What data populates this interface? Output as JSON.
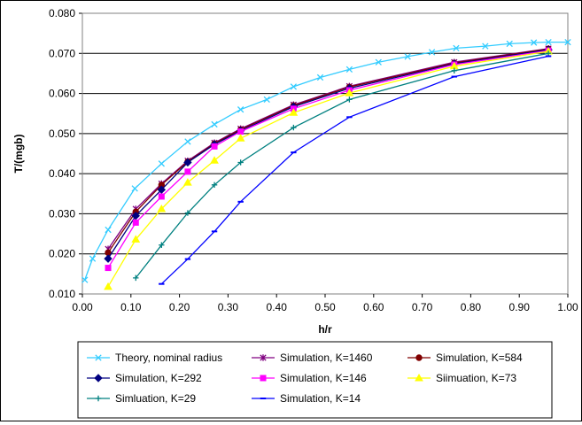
{
  "chart_data": {
    "type": "line",
    "title": "",
    "xlabel": "h/r",
    "ylabel": "T/(mgb)",
    "xlim": [
      0.0,
      1.0
    ],
    "ylim": [
      0.01,
      0.08
    ],
    "x_ticks": [
      "0.00",
      "0.10",
      "0.20",
      "0.30",
      "0.40",
      "0.50",
      "0.60",
      "0.70",
      "0.80",
      "0.90",
      "1.00"
    ],
    "y_ticks": [
      "0.010",
      "0.020",
      "0.030",
      "0.040",
      "0.050",
      "0.060",
      "0.070",
      "0.080"
    ],
    "grid": {
      "x": false,
      "y": true
    },
    "legend_position": "bottom",
    "series": [
      {
        "name": "Theory, nominal radius",
        "color": "#33CCFF",
        "marker": "x",
        "x": [
          0.005,
          0.021,
          0.053,
          0.108,
          0.163,
          0.217,
          0.272,
          0.326,
          0.38,
          0.435,
          0.49,
          0.55,
          0.61,
          0.67,
          0.72,
          0.77,
          0.83,
          0.88,
          0.93,
          0.96,
          1.0
        ],
        "y": [
          0.0135,
          0.0188,
          0.026,
          0.0363,
          0.0425,
          0.048,
          0.0523,
          0.056,
          0.0585,
          0.0617,
          0.064,
          0.066,
          0.0678,
          0.0692,
          0.0703,
          0.0713,
          0.0718,
          0.0724,
          0.0727,
          0.0728,
          0.0728
        ]
      },
      {
        "name": "Simulation, K=1460",
        "color": "#800080",
        "marker": "asterisk",
        "x": [
          0.053,
          0.11,
          0.163,
          0.217,
          0.272,
          0.326,
          0.435,
          0.55,
          0.766,
          0.96
        ],
        "y": [
          0.0212,
          0.0312,
          0.0375,
          0.0432,
          0.0477,
          0.0512,
          0.0572,
          0.0618,
          0.0678,
          0.0712
        ]
      },
      {
        "name": "Simulation, K=584",
        "color": "#800000",
        "marker": "circle",
        "x": [
          0.053,
          0.11,
          0.163,
          0.217,
          0.272,
          0.326,
          0.435,
          0.55,
          0.766,
          0.96
        ],
        "y": [
          0.0203,
          0.0305,
          0.0372,
          0.043,
          0.0475,
          0.051,
          0.057,
          0.0616,
          0.0676,
          0.0711
        ]
      },
      {
        "name": "Simulation, K=292",
        "color": "#000080",
        "marker": "diamond",
        "x": [
          0.053,
          0.11,
          0.163,
          0.217,
          0.272,
          0.326,
          0.435,
          0.55,
          0.766,
          0.96
        ],
        "y": [
          0.0188,
          0.0295,
          0.036,
          0.0428,
          0.0473,
          0.0507,
          0.0567,
          0.0613,
          0.0674,
          0.0709
        ]
      },
      {
        "name": "Simulation, K=146",
        "color": "#FF00FF",
        "marker": "square",
        "x": [
          0.053,
          0.11,
          0.163,
          0.217,
          0.272,
          0.326,
          0.435,
          0.55,
          0.766,
          0.96
        ],
        "y": [
          0.0165,
          0.0278,
          0.0343,
          0.0405,
          0.0468,
          0.0505,
          0.0562,
          0.0608,
          0.0672,
          0.0707
        ]
      },
      {
        "name": "Siimuation, K=73",
        "color": "#FFFF00",
        "marker": "triangle",
        "x": [
          0.053,
          0.11,
          0.163,
          0.217,
          0.272,
          0.326,
          0.435,
          0.55,
          0.766,
          0.96
        ],
        "y": [
          0.0118,
          0.0236,
          0.0312,
          0.0378,
          0.0433,
          0.0488,
          0.0552,
          0.0601,
          0.0668,
          0.0705
        ]
      },
      {
        "name": "Simluation, K=29",
        "color": "#008080",
        "marker": "plus",
        "x": [
          0.11,
          0.163,
          0.217,
          0.272,
          0.326,
          0.435,
          0.55,
          0.766,
          0.96
        ],
        "y": [
          0.014,
          0.0222,
          0.0302,
          0.0372,
          0.0428,
          0.0515,
          0.0585,
          0.0657,
          0.07
        ]
      },
      {
        "name": "Simulation, K=14",
        "color": "#0000FF",
        "marker": "dash",
        "x": [
          0.163,
          0.217,
          0.272,
          0.326,
          0.435,
          0.55,
          0.766,
          0.96
        ],
        "y": [
          0.0125,
          0.0187,
          0.0256,
          0.033,
          0.0453,
          0.0541,
          0.0642,
          0.0693
        ]
      }
    ]
  }
}
